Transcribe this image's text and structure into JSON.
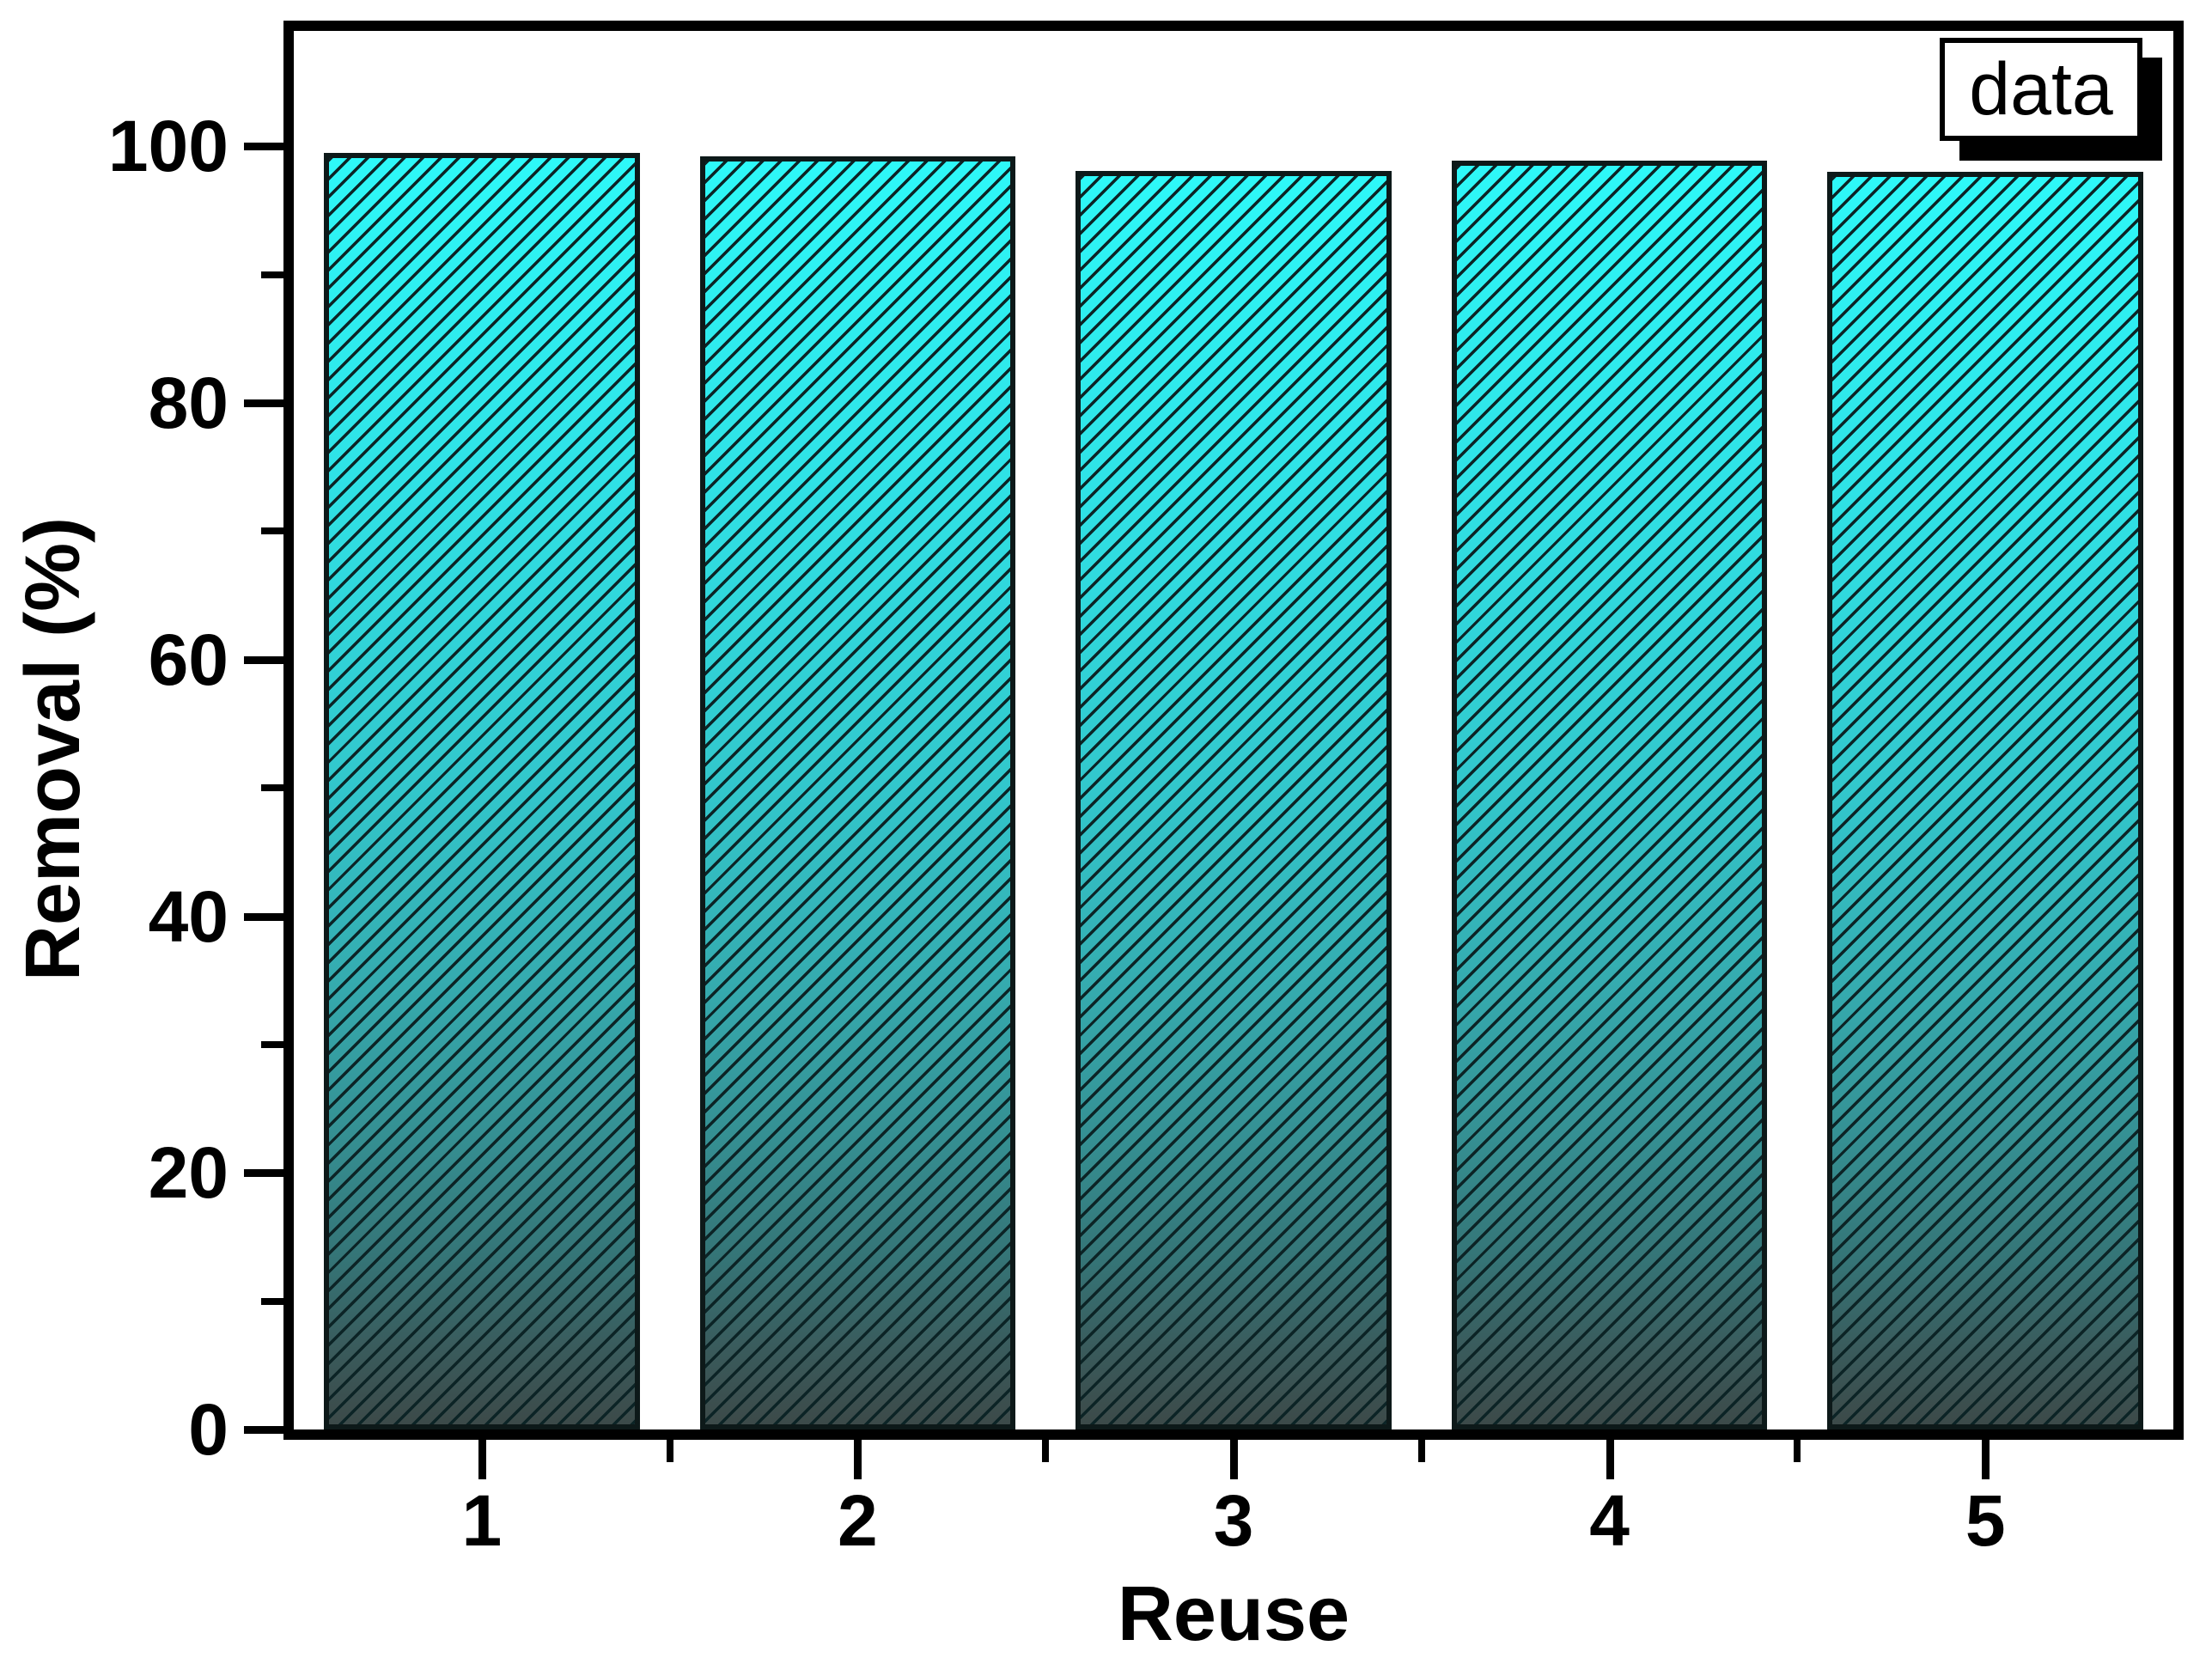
{
  "page": {
    "background": "#ffffff"
  },
  "legend": {
    "label": "data",
    "position": "top-right"
  },
  "chart_data": {
    "type": "bar",
    "title": "",
    "xlabel": "Reuse",
    "ylabel": "Removal (%)",
    "categories": [
      "1",
      "2",
      "3",
      "4",
      "5"
    ],
    "values": [
      99.5,
      99.2,
      98.1,
      98.9,
      98.0
    ],
    "ylim": [
      0,
      109
    ],
    "yticks_major": [
      0,
      20,
      40,
      60,
      80,
      100
    ],
    "yticks_minor": [
      10,
      30,
      50,
      70,
      90
    ],
    "xticks_minor_positions_pct": [
      20,
      40,
      60,
      80
    ],
    "grid": false,
    "legend_entries": [
      "data"
    ],
    "legend_position": "top-right",
    "bar_width_pct_of_category": 84,
    "style": {
      "bar_gradient_stops": [
        "#2ef8f8 0%",
        "#2fe2e6 25%",
        "#32c6cb 50%",
        "#35abaf 65%",
        "#359093 77%",
        "#357476 87%",
        "#3a5b5c 94%",
        "#3c4a49 100%"
      ],
      "hatch_pattern": "/",
      "hatch_color": "#0c2426",
      "bar_border_color": "#0d1919",
      "axis_color": "#000000",
      "text_color": "#000000",
      "legend_shadow_color": "#000000",
      "frame_color": "#000000"
    }
  }
}
